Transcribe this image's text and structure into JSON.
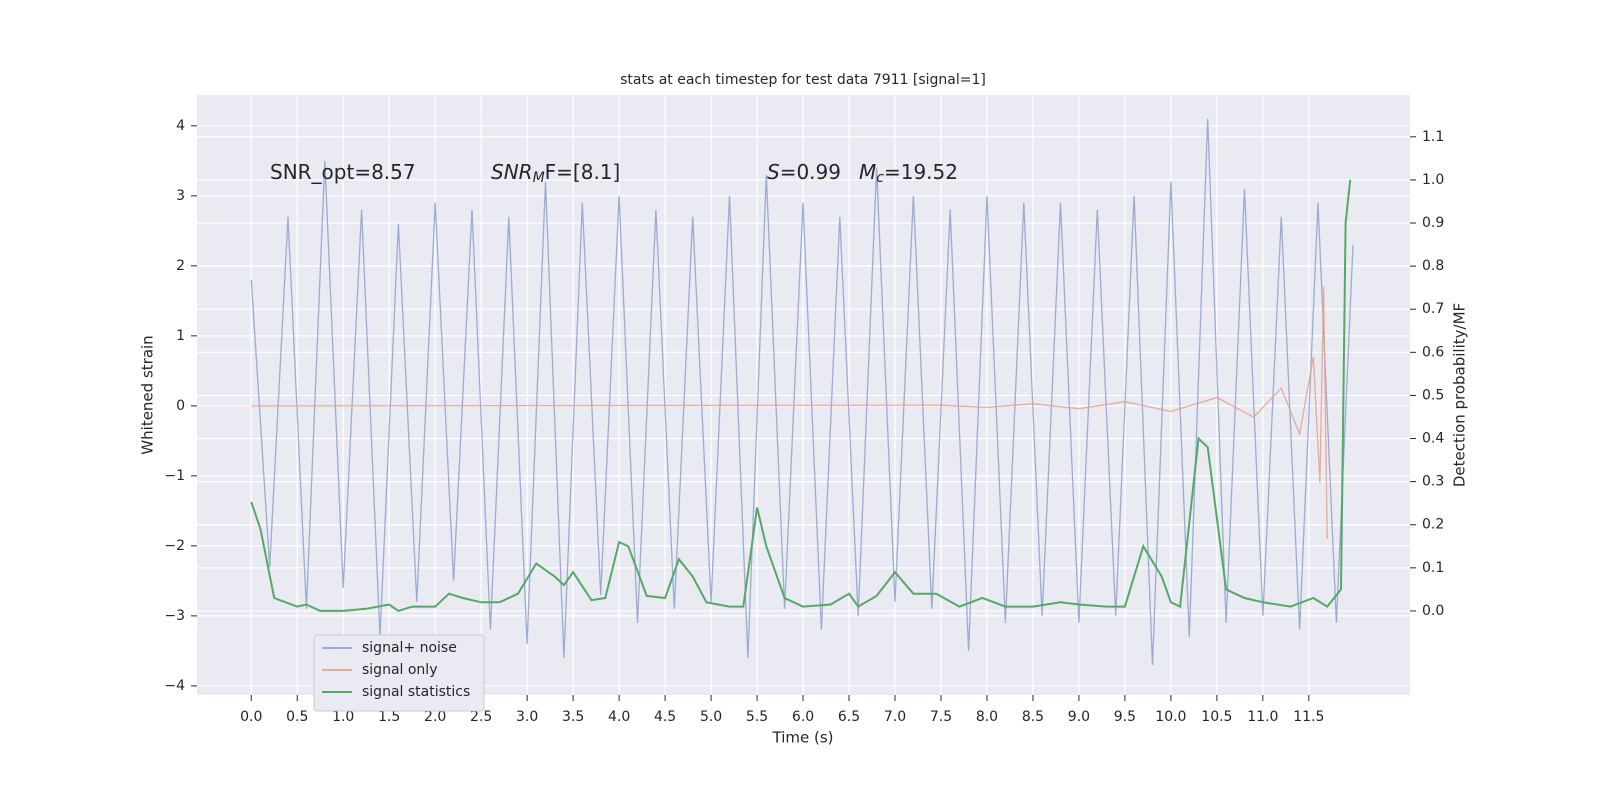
{
  "chart_data": {
    "type": "line",
    "title": "stats at each timestep for test data 7911 [signal=1]",
    "xlabel": "Time (s)",
    "ylabel": "Whitened strain",
    "y2label": "Detection probability/MF",
    "xlim": [
      -0.59,
      12.6
    ],
    "ylim": [
      -4.13,
      4.44
    ],
    "y2lim": [
      -0.195,
      1.197
    ],
    "xticks": [
      {
        "value": 0,
        "label": "0.0"
      },
      {
        "value": 0.5,
        "label": "0.5"
      },
      {
        "value": 1,
        "label": "1.0"
      },
      {
        "value": 1.5,
        "label": "1.5"
      },
      {
        "value": 2,
        "label": "2.0"
      },
      {
        "value": 2.5,
        "label": "2.5"
      },
      {
        "value": 3,
        "label": "3.0"
      },
      {
        "value": 3.5,
        "label": "3.5"
      },
      {
        "value": 4,
        "label": "4.0"
      },
      {
        "value": 4.5,
        "label": "4.5"
      },
      {
        "value": 5,
        "label": "5.0"
      },
      {
        "value": 5.5,
        "label": "5.5"
      },
      {
        "value": 6,
        "label": "6.0"
      },
      {
        "value": 6.5,
        "label": "6.5"
      },
      {
        "value": 7,
        "label": "7.0"
      },
      {
        "value": 7.5,
        "label": "7.5"
      },
      {
        "value": 8,
        "label": "8.0"
      },
      {
        "value": 8.5,
        "label": "8.5"
      },
      {
        "value": 9,
        "label": "9.0"
      },
      {
        "value": 9.5,
        "label": "9.5"
      },
      {
        "value": 10,
        "label": "10.0"
      },
      {
        "value": 10.5,
        "label": "10.5"
      },
      {
        "value": 11,
        "label": "11.0"
      },
      {
        "value": 11.5,
        "label": "11.5"
      }
    ],
    "yticks": [
      {
        "value": -4,
        "label": "−4"
      },
      {
        "value": -3,
        "label": "−3"
      },
      {
        "value": -2,
        "label": "−2"
      },
      {
        "value": -1,
        "label": "−1"
      },
      0,
      1,
      2,
      3,
      4
    ],
    "y2ticks": [
      {
        "value": 0,
        "label": "0.0"
      },
      {
        "value": 0.1,
        "label": "0.1"
      },
      {
        "value": 0.2,
        "label": "0.2"
      },
      {
        "value": 0.3,
        "label": "0.3"
      },
      {
        "value": 0.4,
        "label": "0.4"
      },
      {
        "value": 0.5,
        "label": "0.5"
      },
      {
        "value": 0.6,
        "label": "0.6"
      },
      {
        "value": 0.7,
        "label": "0.7"
      },
      {
        "value": 0.8,
        "label": "0.8"
      },
      {
        "value": 0.9,
        "label": "0.9"
      },
      {
        "value": 1,
        "label": "1.0"
      },
      {
        "value": 1.1,
        "label": "1.1"
      }
    ],
    "grid": true,
    "legend": "lower left",
    "annotations": [
      {
        "parts": [
          {
            "text": "SNR_opt=8.57",
            "style": "normal"
          }
        ]
      },
      {
        "parts": [
          {
            "text": "SNR",
            "style": "italic"
          },
          {
            "text": "M",
            "style": "sub"
          },
          {
            "text": "F=[8.1]",
            "style": "normal"
          }
        ]
      },
      {
        "parts": [
          {
            "text": "S",
            "style": "italic"
          },
          {
            "text": "=0.99",
            "style": "normal"
          }
        ]
      },
      {
        "parts": [
          {
            "text": "M",
            "style": "italic"
          },
          {
            "text": "c",
            "style": "sub"
          },
          {
            "text": "=19.52",
            "style": "normal"
          }
        ]
      }
    ],
    "series": [
      {
        "name": "signal+ noise",
        "color": "#8da0cb",
        "opacity": 0.85,
        "x": [
          0,
          0.2,
          0.4,
          0.6,
          0.8,
          1,
          1.2,
          1.4,
          1.6,
          1.8,
          2,
          2.2,
          2.4,
          2.6,
          2.8,
          3,
          3.2,
          3.4,
          3.6,
          3.8,
          4,
          4.2,
          4.4,
          4.6,
          4.8,
          5,
          5.2,
          5.4,
          5.6,
          5.8,
          6,
          6.2,
          6.4,
          6.6,
          6.8,
          7,
          7.2,
          7.4,
          7.6,
          7.8,
          8,
          8.2,
          8.4,
          8.6,
          8.8,
          9,
          9.2,
          9.4,
          9.6,
          9.8,
          10,
          10.2,
          10.4,
          10.6,
          10.8,
          11,
          11.2,
          11.4,
          11.6,
          11.8,
          11.98
        ],
        "values": [
          1.8,
          -2.3,
          2.7,
          -2.9,
          3.5,
          -2.6,
          2.8,
          -3.3,
          2.6,
          -2.8,
          2.9,
          -2.5,
          2.8,
          -3.2,
          2.7,
          -3.4,
          3.2,
          -3.6,
          2.9,
          -2.7,
          3.0,
          -3.1,
          2.8,
          -2.9,
          2.7,
          -2.8,
          3.0,
          -3.6,
          3.3,
          -2.9,
          2.9,
          -3.2,
          2.7,
          -3.0,
          3.4,
          -2.8,
          3.0,
          -2.9,
          2.8,
          -3.5,
          3.0,
          -3.1,
          2.9,
          -3.0,
          2.9,
          -3.1,
          2.8,
          -3.0,
          3.0,
          -3.7,
          3.2,
          -3.3,
          4.1,
          -3.1,
          3.1,
          -3.0,
          2.7,
          -3.2,
          2.9,
          -3.1,
          2.3
        ]
      },
      {
        "name": "signal only",
        "color": "#e5a089",
        "opacity": 0.85,
        "x": [
          0,
          7.5,
          8.0,
          8.5,
          9.0,
          9.5,
          10.0,
          10.5,
          10.9,
          11.2,
          11.4,
          11.55,
          11.62,
          11.66,
          11.7
        ],
        "values": [
          0,
          0.01,
          -0.02,
          0.03,
          -0.04,
          0.06,
          -0.08,
          0.12,
          -0.16,
          0.25,
          -0.4,
          0.7,
          -1.1,
          1.7,
          -1.9
        ]
      },
      {
        "name": "signal statistics",
        "color": "#55a868",
        "opacity": 1,
        "axis": "y2",
        "x": [
          0,
          0.1,
          0.25,
          0.5,
          0.6,
          0.75,
          1.0,
          1.25,
          1.5,
          1.6,
          1.75,
          2.0,
          2.15,
          2.3,
          2.5,
          2.7,
          2.9,
          3.1,
          3.3,
          3.4,
          3.5,
          3.7,
          3.85,
          4.0,
          4.1,
          4.3,
          4.5,
          4.65,
          4.8,
          4.95,
          5.2,
          5.35,
          5.5,
          5.6,
          5.8,
          6.0,
          6.3,
          6.5,
          6.6,
          6.8,
          7.0,
          7.2,
          7.45,
          7.7,
          7.95,
          8.2,
          8.5,
          8.8,
          9.0,
          9.3,
          9.5,
          9.7,
          9.9,
          10.0,
          10.1,
          10.3,
          10.4,
          10.6,
          10.8,
          11.0,
          11.3,
          11.55,
          11.7,
          11.85,
          11.9,
          11.95
        ],
        "values": [
          0.253,
          0.19,
          0.03,
          0.01,
          0.015,
          0.0,
          0.0,
          0.005,
          0.015,
          0.0,
          0.01,
          0.01,
          0.04,
          0.03,
          0.02,
          0.02,
          0.04,
          0.11,
          0.08,
          0.06,
          0.09,
          0.025,
          0.03,
          0.16,
          0.15,
          0.035,
          0.03,
          0.12,
          0.08,
          0.02,
          0.01,
          0.01,
          0.24,
          0.15,
          0.03,
          0.01,
          0.015,
          0.04,
          0.01,
          0.035,
          0.09,
          0.04,
          0.04,
          0.01,
          0.03,
          0.01,
          0.01,
          0.02,
          0.015,
          0.01,
          0.01,
          0.15,
          0.08,
          0.02,
          0.01,
          0.4,
          0.38,
          0.05,
          0.03,
          0.02,
          0.01,
          0.03,
          0.01,
          0.05,
          0.9,
          1.0
        ]
      }
    ]
  }
}
